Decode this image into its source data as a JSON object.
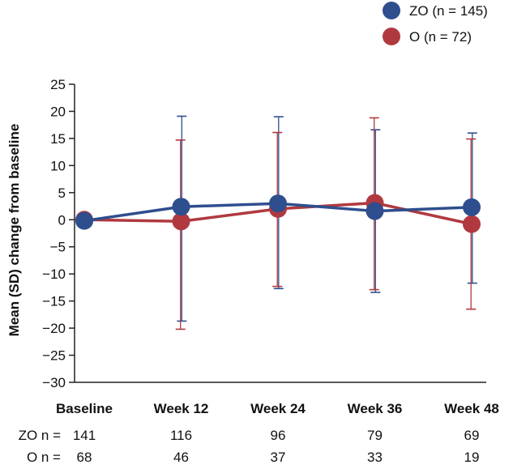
{
  "chart_data": {
    "type": "line",
    "title": "",
    "xlabel": "",
    "ylabel": "Mean (SD) change from baseline",
    "categories": [
      "Baseline",
      "Week 12",
      "Week 24",
      "Week 36",
      "Week 48"
    ],
    "ylim": [
      -30,
      25
    ],
    "yticks": [
      25,
      20,
      15,
      10,
      5,
      0,
      -5,
      -10,
      -15,
      -20,
      -25,
      -30
    ],
    "ytick_labels": [
      "25",
      "20",
      "15",
      "10",
      "5",
      "0",
      "−5",
      "−10",
      "−15",
      "−20",
      "−25",
      "−30"
    ],
    "grid": false,
    "legend_position": "top-right",
    "series": [
      {
        "name": "ZO (n = 145)",
        "color": "#2e4e8e",
        "values": [
          -0.2,
          2.4,
          3.0,
          1.6,
          2.3
        ],
        "error_low": [
          null,
          -18.7,
          -12.7,
          -13.4,
          -11.7
        ],
        "error_high": [
          null,
          19.1,
          19.0,
          16.6,
          16.0
        ]
      },
      {
        "name": "O (n = 72)",
        "color": "#b0393f",
        "values": [
          0.0,
          -0.3,
          2.0,
          3.1,
          -0.8
        ],
        "error_low": [
          null,
          -20.2,
          -12.3,
          -12.9,
          -16.5
        ],
        "error_high": [
          null,
          14.7,
          16.1,
          18.8,
          14.9
        ]
      }
    ]
  },
  "legend": {
    "items": [
      {
        "label": "ZO (n = 145)",
        "color": "#2e4e8e"
      },
      {
        "label": "O (n = 72)",
        "color": "#b0393f"
      }
    ]
  },
  "n_table": {
    "rows": [
      {
        "label": "ZO n =",
        "values": [
          "141",
          "116",
          "96",
          "79",
          "69"
        ]
      },
      {
        "label": "O n =",
        "values": [
          "68",
          "46",
          "37",
          "33",
          "19"
        ]
      }
    ]
  }
}
